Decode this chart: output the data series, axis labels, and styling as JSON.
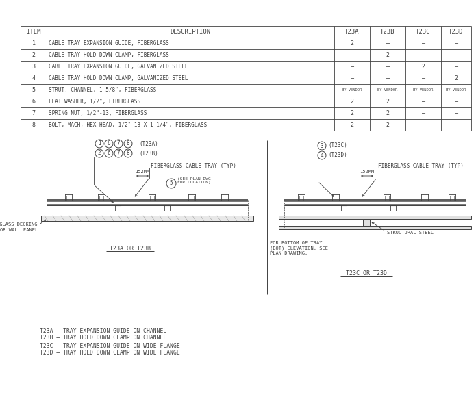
{
  "bg_color": "#ffffff",
  "line_color": "#404040",
  "table_headers": [
    "ITEM",
    "DESCRIPTION",
    "T23A",
    "T23B",
    "T23C",
    "T23D"
  ],
  "table_rows": [
    [
      "1",
      "CABLE TRAY EXPANSION GUIDE, FIBERGLASS",
      "2",
      "—",
      "—",
      "—"
    ],
    [
      "2",
      "CABLE TRAY HOLD DOWN CLAMP, FIBERGLASS",
      "—",
      "2",
      "—",
      "—"
    ],
    [
      "3",
      "CABLE TRAY EXPANSION GUIDE, GALVANIZED STEEL",
      "—",
      "—",
      "2",
      "—"
    ],
    [
      "4",
      "CABLE TRAY HOLD DOWN CLAMP, GALVANIZED STEEL",
      "—",
      "—",
      "—",
      "2"
    ],
    [
      "5",
      "STRUT, CHANNEL, 1 5/8\", FIBERGLASS",
      "BY VENDOR",
      "BY VENDOR",
      "BY VENDOR",
      "BY VENDOR"
    ],
    [
      "6",
      "FLAT WASHER, 1/2\", FIBERGLASS",
      "2",
      "2",
      "—",
      "—"
    ],
    [
      "7",
      "SPRING NUT, 1/2\"-13, FIBERGLASS",
      "2",
      "2",
      "—",
      "—"
    ],
    [
      "8",
      "BOLT, MACH, HEX HEAD, 1/2\"-13 X 1 1/4\", FIBERGLASS",
      "2",
      "2",
      "—",
      "—"
    ]
  ],
  "legend": [
    "T23A – TRAY EXPANSION GUIDE ON CHANNEL",
    "T23B – TRAY HOLD DOWN CLAMP ON CHANNEL",
    "T23C – TRAY EXPANSION GUIDE ON WIDE FLANGE",
    "T23D – TRAY HOLD DOWN CLAMP ON WIDE FLANGE"
  ],
  "left_balloons_row1": [
    "1",
    "6",
    "7",
    "8"
  ],
  "left_balloons_row2": [
    "2",
    "6",
    "7",
    "8"
  ],
  "right_balloons": [
    "3",
    "4"
  ],
  "label_fiber_tray": "FIBERGLASS CABLE TRAY (TYP)",
  "label_152mm": "152MM",
  "label_5_note": "(SEE PLAN DWG\nFOR LOCATION)",
  "label_decking": "FIBERGLASS DECKING\nOR WALL PANEL",
  "label_struct": "STRUCTURAL STEEL",
  "label_bottom": "FOR BOTTOM OF TRAY\n(BOT) ELEVATION, SEE\nPLAN DRAWING.",
  "caption_left": "T23A OR T23B",
  "caption_right": "T23C OR T23D"
}
